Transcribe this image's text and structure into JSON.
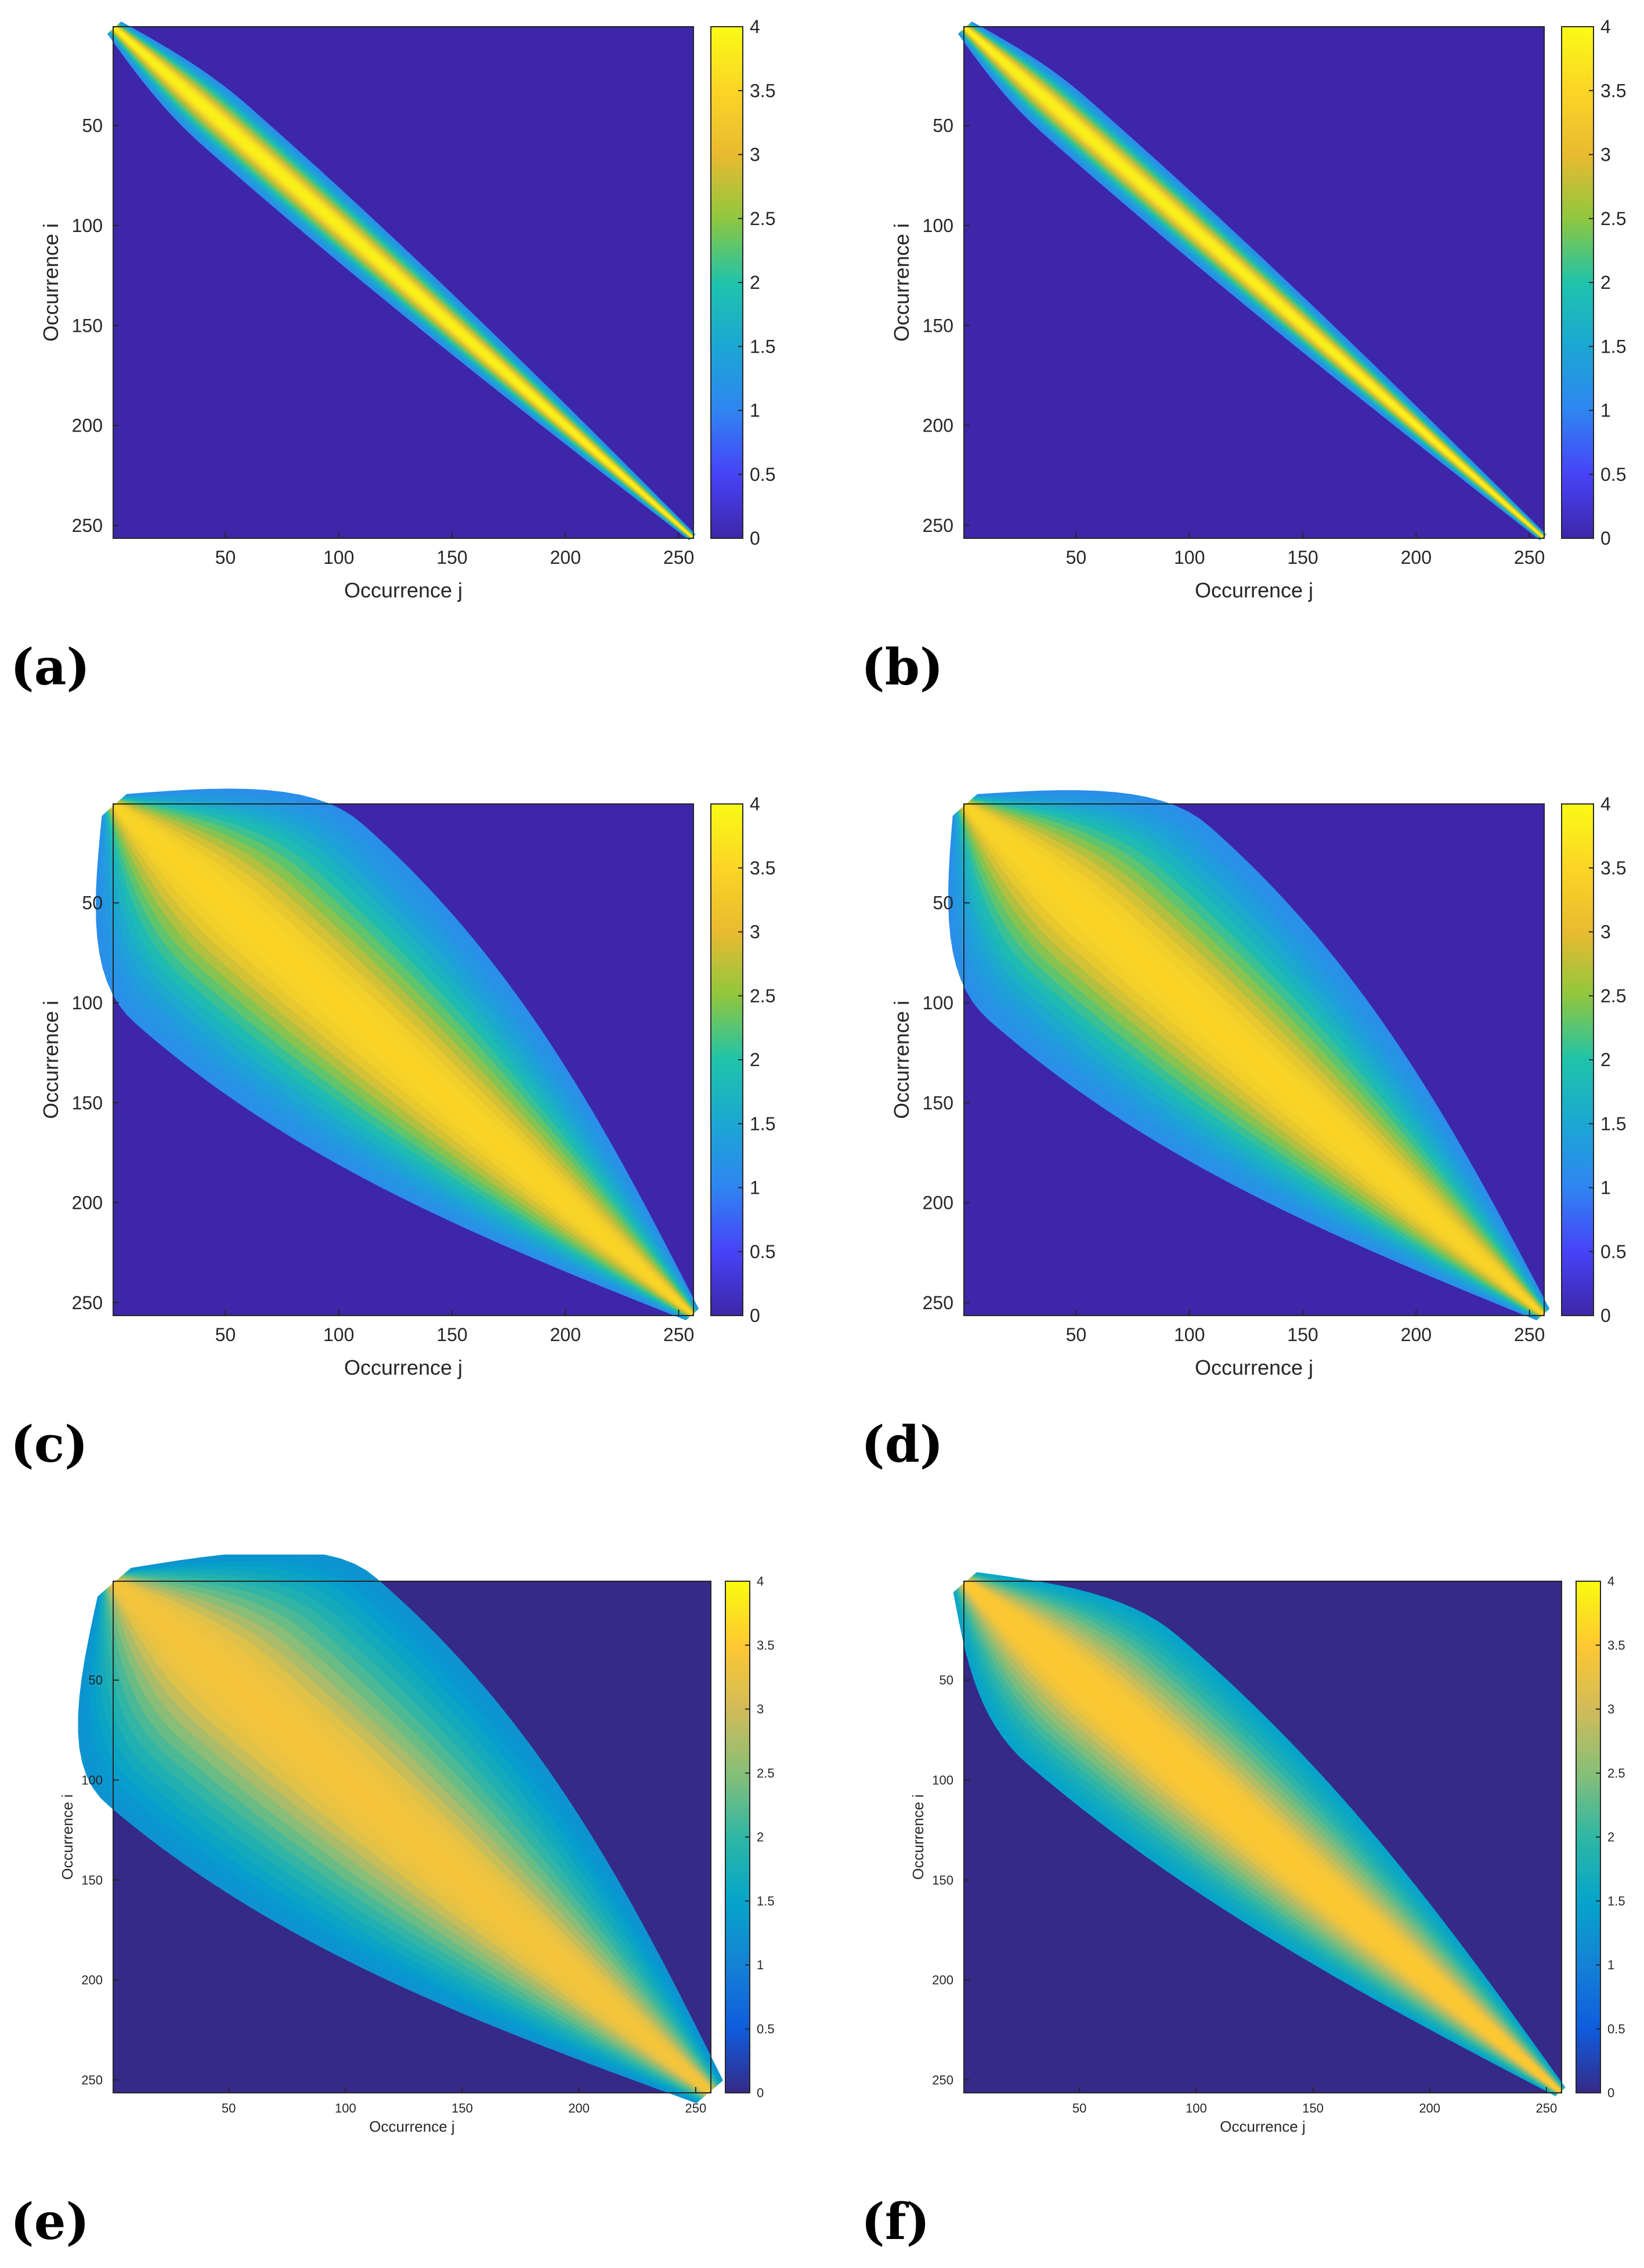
{
  "chart_data": [
    {
      "type": "heatmap",
      "panel_label": "(a)",
      "xlabel": "Occurrence j",
      "ylabel": "Occurrence i",
      "xlim": [
        1,
        256
      ],
      "ylim": [
        256,
        1
      ],
      "x_ticks": [
        "50",
        "100",
        "150",
        "200",
        "250"
      ],
      "y_ticks": [
        "50",
        "100",
        "150",
        "200",
        "250"
      ],
      "x_tick_values": [
        50,
        100,
        150,
        200,
        250
      ],
      "y_tick_values": [
        50,
        100,
        150,
        200,
        250
      ],
      "colorbar_ticks": [
        "0",
        "0.5",
        "1",
        "1.5",
        "2",
        "2.5",
        "3",
        "3.5",
        "4"
      ],
      "colorbar_values": [
        0,
        0.5,
        1,
        1.5,
        2,
        2.5,
        3,
        3.5,
        4
      ],
      "clim": [
        0,
        4
      ],
      "colormap": [
        "#3e26a8",
        "#4743f8",
        "#2f85f2",
        "#1ba7d3",
        "#1fc3aa",
        "#8fc73e",
        "#e9ba30",
        "#fbd526",
        "#f9fb15"
      ],
      "pattern": {
        "width_start": 4,
        "width_peak": 14,
        "width_end": 2,
        "peak_pos": 50,
        "peak_value": 3.9,
        "end_value": 1.0
      }
    },
    {
      "type": "heatmap",
      "panel_label": "(b)",
      "xlabel": "Occurrence j",
      "ylabel": "Occurrence i",
      "xlim": [
        1,
        256
      ],
      "ylim": [
        256,
        1
      ],
      "x_ticks": [
        "50",
        "100",
        "150",
        "200",
        "250"
      ],
      "y_ticks": [
        "50",
        "100",
        "150",
        "200",
        "250"
      ],
      "x_tick_values": [
        50,
        100,
        150,
        200,
        250
      ],
      "y_tick_values": [
        50,
        100,
        150,
        200,
        250
      ],
      "colorbar_ticks": [
        "0",
        "0.5",
        "1",
        "1.5",
        "2",
        "2.5",
        "3",
        "3.5",
        "4"
      ],
      "colorbar_values": [
        0,
        0.5,
        1,
        1.5,
        2,
        2.5,
        3,
        3.5,
        4
      ],
      "clim": [
        0,
        4
      ],
      "colormap": [
        "#3e26a8",
        "#4743f8",
        "#2f85f2",
        "#1ba7d3",
        "#1fc3aa",
        "#8fc73e",
        "#e9ba30",
        "#fbd526",
        "#f9fb15"
      ],
      "pattern": {
        "width_start": 4,
        "width_peak": 13,
        "width_end": 2,
        "peak_pos": 45,
        "peak_value": 3.9,
        "end_value": 0.9
      }
    },
    {
      "type": "heatmap",
      "panel_label": "(c)",
      "xlabel": "Occurrence j",
      "ylabel": "Occurrence i",
      "xlim": [
        1,
        256
      ],
      "ylim": [
        256,
        1
      ],
      "x_ticks": [
        "50",
        "100",
        "150",
        "200",
        "250"
      ],
      "y_ticks": [
        "50",
        "100",
        "150",
        "200",
        "250"
      ],
      "x_tick_values": [
        50,
        100,
        150,
        200,
        250
      ],
      "y_tick_values": [
        50,
        100,
        150,
        200,
        250
      ],
      "colorbar_ticks": [
        "0",
        "0.5",
        "1",
        "1.5",
        "2",
        "2.5",
        "3",
        "3.5",
        "4"
      ],
      "colorbar_values": [
        0,
        0.5,
        1,
        1.5,
        2,
        2.5,
        3,
        3.5,
        4
      ],
      "clim": [
        0,
        4
      ],
      "colormap": [
        "#3e26a8",
        "#4743f8",
        "#2f85f2",
        "#1ba7d3",
        "#1fc3aa",
        "#8fc73e",
        "#e9ba30",
        "#fbd526",
        "#f9fb15"
      ],
      "pattern": {
        "width_start": 6,
        "width_peak": 70,
        "width_end": 4,
        "peak_pos": 60,
        "peak_value": 3.5,
        "end_value": 1.0
      }
    },
    {
      "type": "heatmap",
      "panel_label": "(d)",
      "xlabel": "Occurrence j",
      "ylabel": "Occurrence i",
      "xlim": [
        1,
        256
      ],
      "ylim": [
        256,
        1
      ],
      "x_ticks": [
        "50",
        "100",
        "150",
        "200",
        "250"
      ],
      "y_ticks": [
        "50",
        "100",
        "150",
        "200",
        "250"
      ],
      "x_tick_values": [
        50,
        100,
        150,
        200,
        250
      ],
      "y_tick_values": [
        50,
        100,
        150,
        200,
        250
      ],
      "colorbar_ticks": [
        "0",
        "0.5",
        "1",
        "1.5",
        "2",
        "2.5",
        "3",
        "3.5",
        "4"
      ],
      "colorbar_values": [
        0,
        0.5,
        1,
        1.5,
        2,
        2.5,
        3,
        3.5,
        4
      ],
      "clim": [
        0,
        4
      ],
      "colormap": [
        "#3e26a8",
        "#4743f8",
        "#2f85f2",
        "#1ba7d3",
        "#1fc3aa",
        "#8fc73e",
        "#e9ba30",
        "#fbd526",
        "#f9fb15"
      ],
      "pattern": {
        "width_start": 6,
        "width_peak": 68,
        "width_end": 4,
        "peak_pos": 60,
        "peak_value": 3.5,
        "end_value": 1.0
      }
    },
    {
      "type": "heatmap",
      "panel_label": "(e)",
      "xlabel": "Occurrence j",
      "ylabel": "Occurrence i",
      "xlim": [
        1,
        256
      ],
      "ylim": [
        256,
        1
      ],
      "x_ticks": [
        "50",
        "100",
        "150",
        "200",
        "250"
      ],
      "y_ticks": [
        "50",
        "100",
        "150",
        "200",
        "250"
      ],
      "x_tick_values": [
        50,
        100,
        150,
        200,
        250
      ],
      "y_tick_values": [
        50,
        100,
        150,
        200,
        250
      ],
      "colorbar_ticks": [
        "0",
        "0.5",
        "1",
        "1.5",
        "2",
        "2.5",
        "3",
        "3.5",
        "4"
      ],
      "colorbar_values": [
        0,
        0.5,
        1,
        1.5,
        2,
        2.5,
        3,
        3.5,
        4
      ],
      "clim": [
        0,
        4
      ],
      "colormap": [
        "#352a87",
        "#0f5cdd",
        "#1481d6",
        "#06a4ca",
        "#2eb7a4",
        "#87bf77",
        "#d1bb59",
        "#fec832",
        "#f9fb0e"
      ],
      "pattern": {
        "width_start": 8,
        "width_peak": 80,
        "width_end": 8,
        "peak_pos": 55,
        "peak_value": 3.4,
        "end_value": 1.3
      }
    },
    {
      "type": "heatmap",
      "panel_label": "(f)",
      "xlabel": "Occurrence j",
      "ylabel": "Occurrence i",
      "xlim": [
        1,
        256
      ],
      "ylim": [
        256,
        1
      ],
      "x_ticks": [
        "50",
        "100",
        "150",
        "200",
        "250"
      ],
      "y_ticks": [
        "50",
        "100",
        "150",
        "200",
        "250"
      ],
      "x_tick_values": [
        50,
        100,
        150,
        200,
        250
      ],
      "y_tick_values": [
        50,
        100,
        150,
        200,
        250
      ],
      "colorbar_ticks": [
        "0",
        "0.5",
        "1",
        "1.5",
        "2",
        "2.5",
        "3",
        "3.5",
        "4"
      ],
      "colorbar_values": [
        0,
        0.5,
        1,
        1.5,
        2,
        2.5,
        3,
        3.5,
        4
      ],
      "clim": [
        0,
        4
      ],
      "colormap": [
        "#352a87",
        "#0f5cdd",
        "#1481d6",
        "#06a4ca",
        "#2eb7a4",
        "#87bf77",
        "#d1bb59",
        "#fec832",
        "#f9fb0e"
      ],
      "pattern": {
        "width_start": 6,
        "width_peak": 45,
        "width_end": 3,
        "peak_pos": 60,
        "peak_value": 3.5,
        "end_value": 2.0
      }
    }
  ]
}
